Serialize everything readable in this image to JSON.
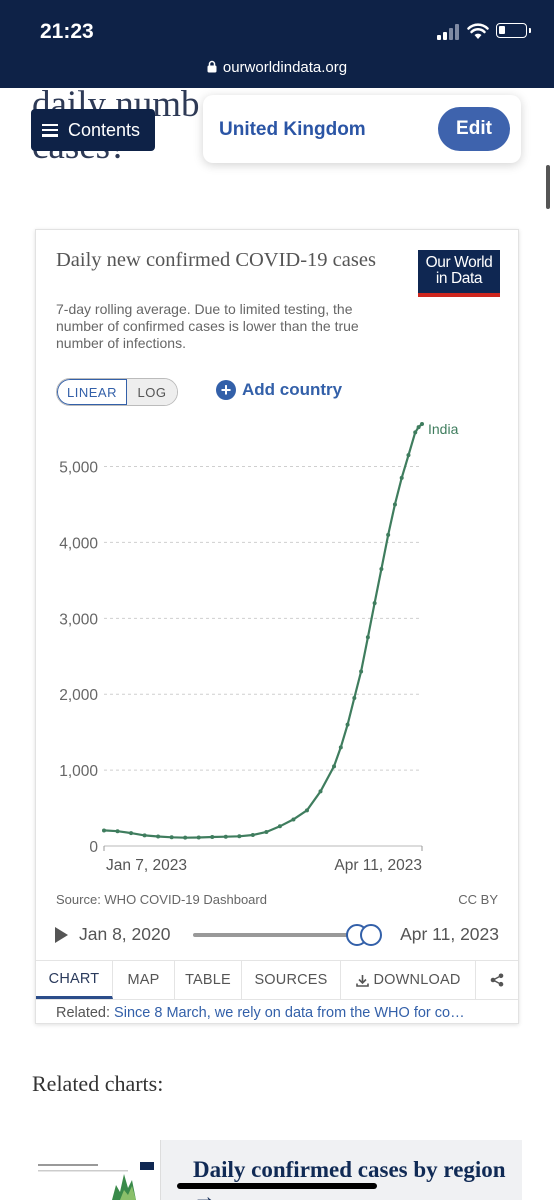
{
  "status_bar": {
    "time": "21:23",
    "url": "ourworldindata.org"
  },
  "article": {
    "heading_fragment": "daily num… confirmed cases?",
    "line1": "daily numb",
    "line2": "cases?"
  },
  "toolbar": {
    "contents_label": "Contents",
    "country": "United Kingdom",
    "edit_label": "Edit"
  },
  "chart": {
    "title": "Daily new confirmed COVID-19 cases",
    "subtitle": "7-day rolling average. Due to limited testing, the number of confirmed cases is lower than the true number of infections.",
    "logo_line1": "Our World",
    "logo_line2": "in Data",
    "scale_options": [
      "LINEAR",
      "LOG"
    ],
    "selected_scale": "LINEAR",
    "add_country_label": "Add country",
    "source": "Source: WHO COVID-19 Dashboard",
    "license": "CC BY",
    "timeline_start": "Jan 8, 2020",
    "timeline_end": "Apr 11, 2023",
    "timeline_handle_position": 1.0,
    "tabs": [
      "CHART",
      "MAP",
      "TABLE",
      "SOURCES",
      "DOWNLOAD"
    ],
    "active_tab": "CHART",
    "related_prefix": "Related: ",
    "related_link": "Since 8 March, we rely on data from the WHO for co…",
    "colors": {
      "line": "#3f7d5e",
      "accent": "#3360a9",
      "navy": "#0e2247"
    }
  },
  "chart_data": {
    "type": "line",
    "title": "Daily new confirmed COVID-19 cases",
    "xlabel": "",
    "ylabel": "",
    "ylim": [
      0,
      5600
    ],
    "yticks": [
      0,
      1000,
      2000,
      3000,
      4000,
      5000
    ],
    "ytick_labels": [
      "0",
      "1,000",
      "2,000",
      "3,000",
      "4,000",
      "5,000"
    ],
    "xtick_labels": [
      "Jan 7, 2023",
      "Apr 11, 2023"
    ],
    "grid": true,
    "series": [
      {
        "name": "India",
        "x": [
          "2023-01-07",
          "2023-01-11",
          "2023-01-15",
          "2023-01-19",
          "2023-01-23",
          "2023-01-27",
          "2023-01-31",
          "2023-02-04",
          "2023-02-08",
          "2023-02-12",
          "2023-02-16",
          "2023-02-20",
          "2023-02-24",
          "2023-02-28",
          "2023-03-04",
          "2023-03-08",
          "2023-03-12",
          "2023-03-16",
          "2023-03-18",
          "2023-03-20",
          "2023-03-22",
          "2023-03-24",
          "2023-03-26",
          "2023-03-28",
          "2023-03-30",
          "2023-04-01",
          "2023-04-03",
          "2023-04-05",
          "2023-04-07",
          "2023-04-09",
          "2023-04-10",
          "2023-04-11"
        ],
        "values": [
          205,
          195,
          170,
          140,
          125,
          115,
          110,
          112,
          118,
          122,
          128,
          145,
          185,
          260,
          350,
          470,
          720,
          1050,
          1300,
          1600,
          1950,
          2300,
          2750,
          3200,
          3650,
          4100,
          4500,
          4850,
          5150,
          5450,
          5520,
          5560
        ]
      }
    ]
  },
  "related_charts": {
    "heading": "Related charts:",
    "first_title": "Daily confirmed cases by region →"
  }
}
